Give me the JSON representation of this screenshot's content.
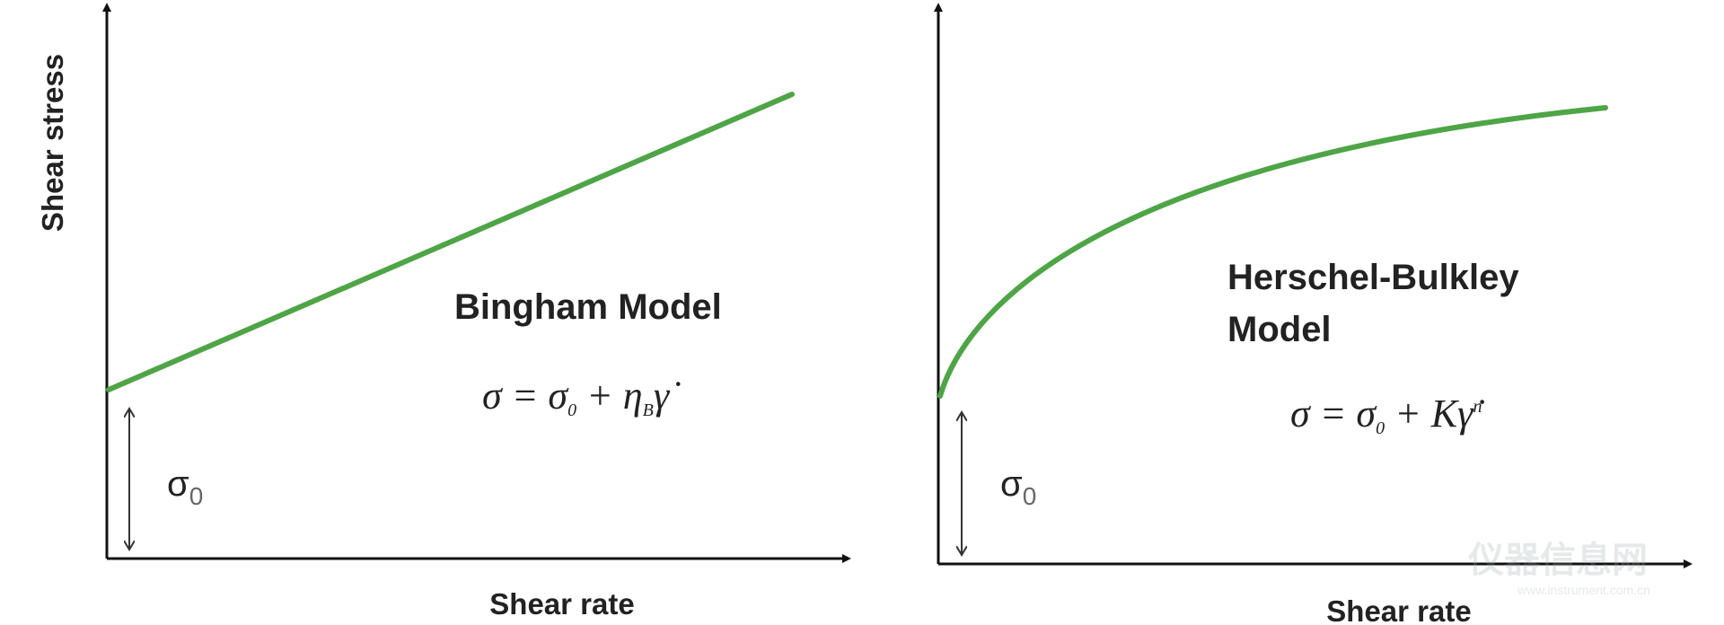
{
  "panels": [
    {
      "y_axis_label": "Shear stress",
      "x_axis_label": "Shear rate",
      "yield_label": {
        "symbol": "σ",
        "sub": "0"
      },
      "model_name": [
        "Bingham Model"
      ],
      "equation": [
        {
          "text": "σ  = σ"
        },
        {
          "sub": "0"
        },
        {
          "text": " + η"
        },
        {
          "sub": "B"
        },
        {
          "text": "γ̇"
        }
      ]
    },
    {
      "x_axis_label": "Shear rate",
      "yield_label": {
        "symbol": "σ",
        "sub": "0"
      },
      "model_name": [
        "Herschel-Bulkley",
        "Model"
      ],
      "equation": [
        {
          "text": "σ  = σ"
        },
        {
          "sub": "0"
        },
        {
          "text": " + Kγ̇"
        },
        {
          "sup": "n"
        }
      ]
    }
  ],
  "watermark": {
    "title": "仪器信息网",
    "url": "www.instrument.com.cn"
  }
}
